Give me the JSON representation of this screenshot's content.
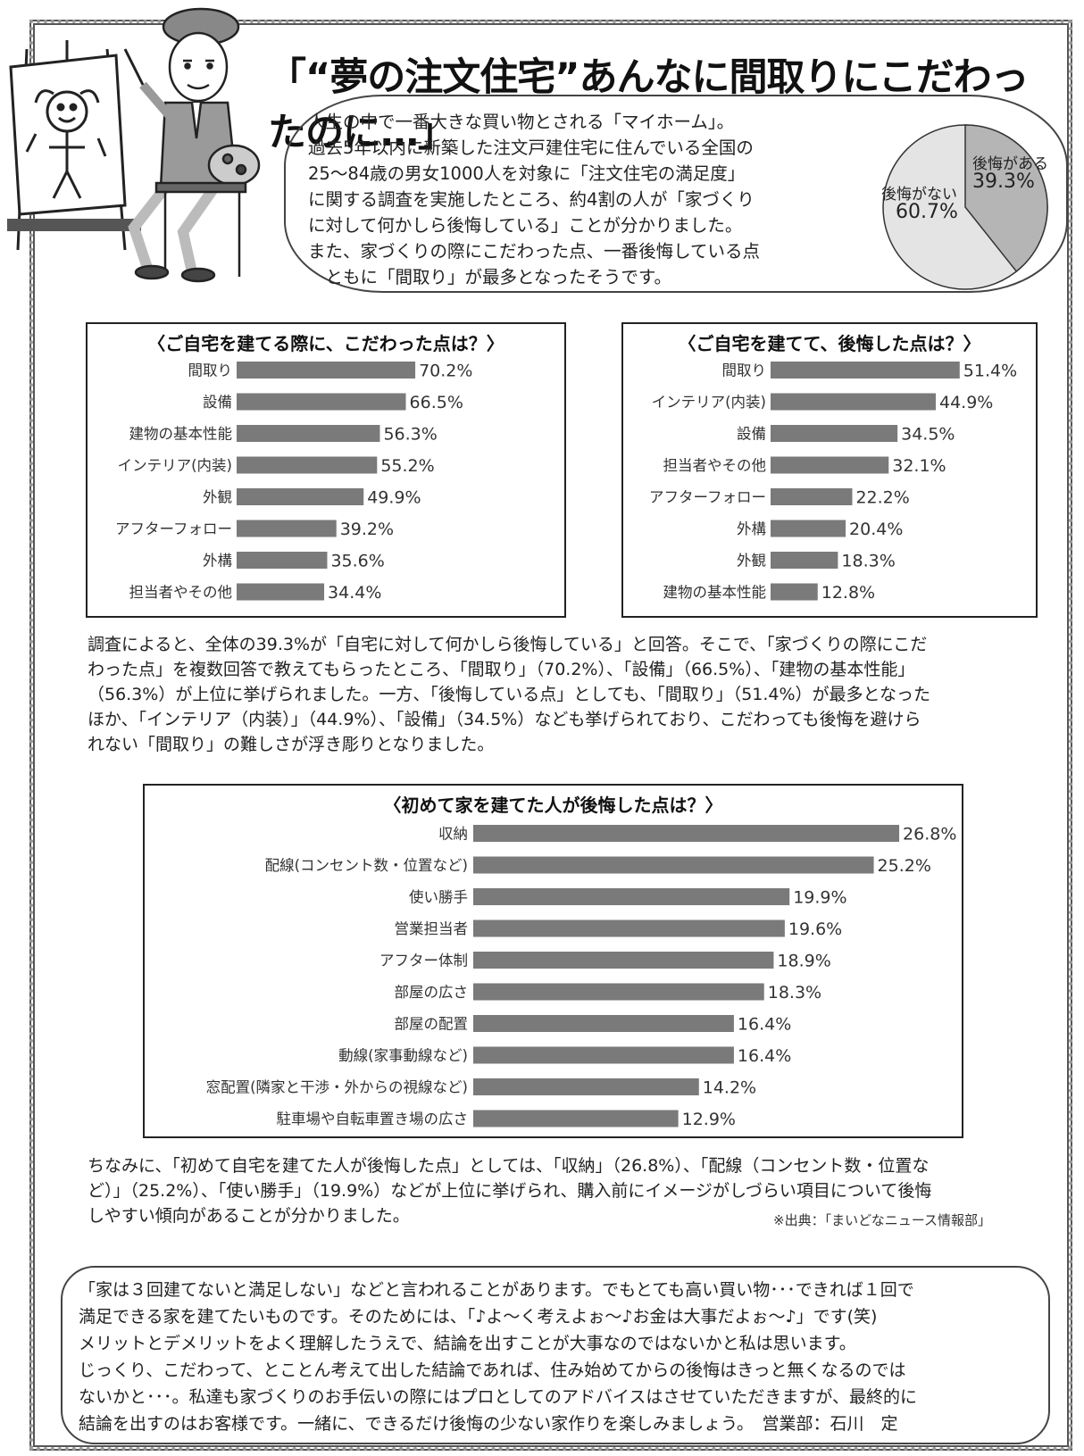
{
  "headline": "「“夢の注文住宅”あんなに間取りにこだわったのに…」",
  "intro_lines": [
    "人生の中で一番大きな買い物とされる「マイホーム」。",
    "過去5年以内に新築した注文戸建住宅に住んでいる全国の",
    "25～84歳の男女1000人を対象に「注文住宅の満足度」",
    "に関する調査を実施したところ、約4割の人が「家づくり",
    "に対して何かしら後悔している」ことが分かりました。",
    "また、家づくりの際にこだわった点、一番後悔している点",
    "　ともに「間取り」が最多となったそうです。"
  ],
  "pie": {
    "regret_label": "後悔がある",
    "regret_value": "39.3%",
    "no_regret_label": "後悔がない",
    "no_regret_value": "60.7%",
    "regret_fraction": 0.393,
    "regret_color": "#b5b5b5",
    "no_regret_color": "#e4e4e4"
  },
  "chart_data": [
    {
      "type": "bar",
      "title": "〈ご自宅を建てる際に、こだわった点は？〉",
      "categories": [
        "間取り",
        "設備",
        "建物の基本性能",
        "インテリア(内装)",
        "外観",
        "アフターフォロー",
        "外構",
        "担当者やその他"
      ],
      "values": [
        70.2,
        66.5,
        56.3,
        55.2,
        49.9,
        39.2,
        35.6,
        34.4
      ],
      "labels": [
        "70.2%",
        "66.5%",
        "56.3%",
        "55.2%",
        "49.9%",
        "39.2%",
        "35.6%",
        "34.4%"
      ],
      "xlim": [
        0,
        100
      ],
      "bar_color": "#7a7a7a"
    },
    {
      "type": "bar",
      "title": "〈ご自宅を建てて、後悔した点は？〉",
      "categories": [
        "間取り",
        "インテリア(内装)",
        "設備",
        "担当者やその他",
        "アフターフォロー",
        "外構",
        "外観",
        "建物の基本性能"
      ],
      "values": [
        51.4,
        44.9,
        34.5,
        32.1,
        22.2,
        20.4,
        18.3,
        12.8
      ],
      "labels": [
        "51.4%",
        "44.9%",
        "34.5%",
        "32.1%",
        "22.2%",
        "20.4%",
        "18.3%",
        "12.8%"
      ],
      "xlim": [
        0,
        100
      ],
      "bar_color": "#7a7a7a"
    },
    {
      "type": "bar",
      "title": "〈初めて家を建てた人が後悔した点は？〉",
      "categories": [
        "収納",
        "配線(コンセント数・位置など)",
        "使い勝手",
        "営業担当者",
        "アフター体制",
        "部屋の広さ",
        "部屋の配置",
        "動線(家事動線など)",
        "窓配置(隣家と干渉・外からの視線など)",
        "駐車場や自転車置き場の広さ"
      ],
      "values": [
        26.8,
        25.2,
        19.9,
        19.6,
        18.9,
        18.3,
        16.4,
        16.4,
        14.2,
        12.9
      ],
      "labels": [
        "26.8%",
        "25.2%",
        "19.9%",
        "19.6%",
        "18.9%",
        "18.3%",
        "16.4%",
        "16.4%",
        "14.2%",
        "12.9%"
      ],
      "xlim": [
        0,
        100
      ],
      "bar_color": "#7a7a7a"
    }
  ],
  "para1_lines": [
    "調査によると、全体の39.3%が「自宅に対して何かしら後悔している」と回答。そこで、「家づくりの際にこだ",
    "わった点」を複数回答で教えてもらったところ、「間取り」（70.2%）、「設備」（66.5%）、「建物の基本性能」",
    "（56.3%）が上位に挙げられました。一方、「後悔している点」としても、「間取り」（51.4%）が最多となった",
    "ほか、「インテリア（内装）」（44.9%）、「設備」（34.5%）なども挙げられており、こだわっても後悔を避けら",
    "れない「間取り」の難しさが浮き彫りとなりました。"
  ],
  "para2_lines": [
    "ちなみに、「初めて自宅を建てた人が後悔した点」としては、「収納」（26.8%）、「配線（コンセント数・位置な",
    "ど）」（25.2%）、「使い勝手」（19.9%）などが上位に挙げられ、購入前にイメージがしづらい項目について後悔",
    "しやすい傾向があることが分かりました。"
  ],
  "source": "※出典：「まいどなニュース情報部」",
  "closing_lines": [
    "「家は３回建てないと満足しない」などと言われることがあります。でもとても高い買い物･･･できれば１回で",
    "満足できる家を建てたいものです。そのためには、「♪よ～く考えよぉ～♪お金は大事だよぉ～♪」です(笑)",
    "メリットとデメリットをよく理解したうえで、結論を出すことが大事なのではないかと私は思います。",
    "じっくり、こだわって、とことん考えて出した結論であれば、住み始めてからの後悔はきっと無くなるのでは",
    "ないかと･･･。私達も家づくりのお手伝いの際にはプロとしてのアドバイスはさせていただきますが、最終的に",
    "結論を出すのはお客様です。一緒に、できるだけ後悔の少ない家作りを楽しみましょう。　営業部：石川　定"
  ]
}
